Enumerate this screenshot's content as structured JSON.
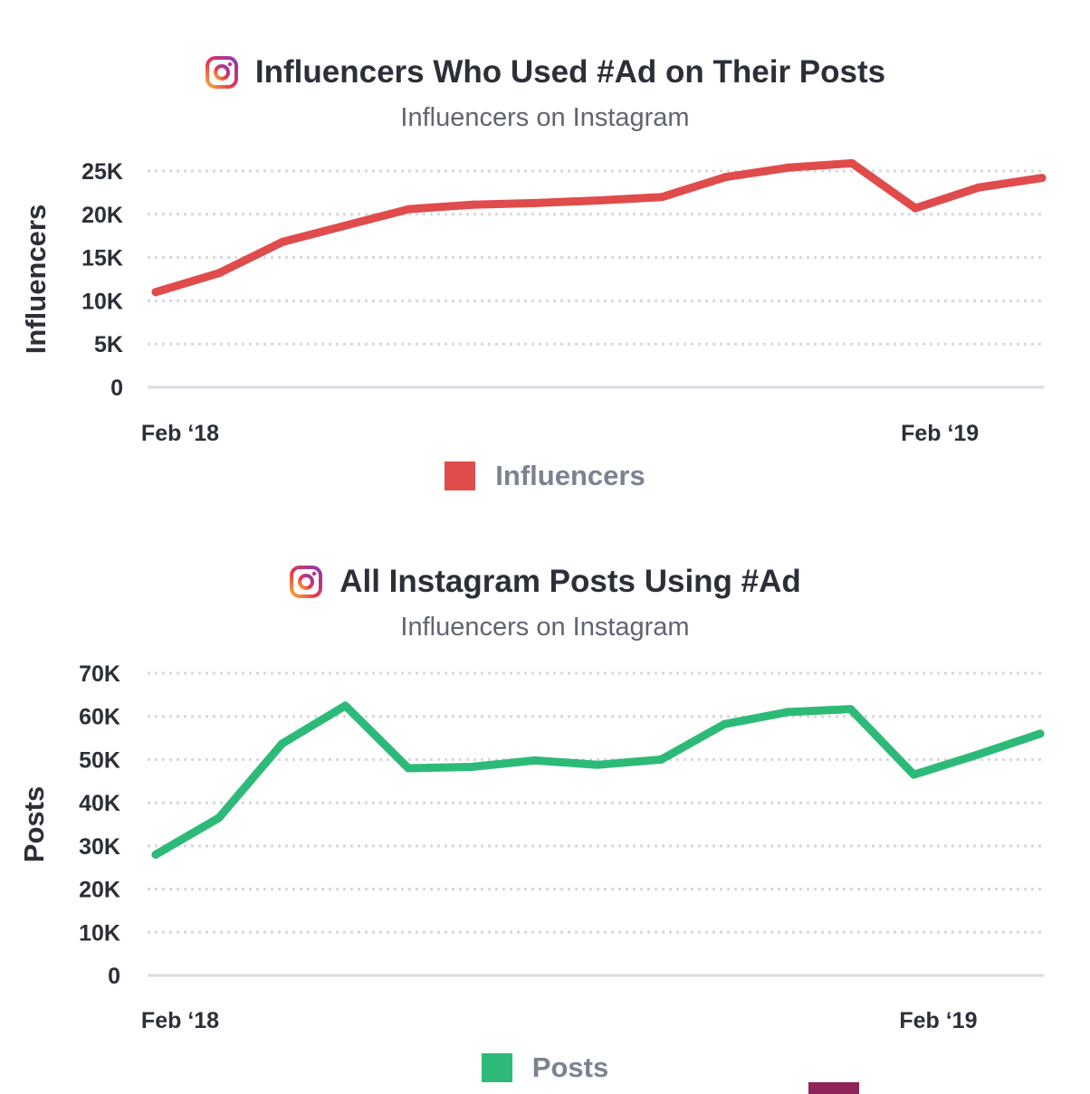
{
  "icons": {
    "title_icon": "instagram-icon"
  },
  "chart_data": [
    {
      "type": "line",
      "title": "Influencers Who Used #Ad on Their Posts",
      "subtitle": "Influencers on Instagram",
      "ylabel": "Influencers",
      "ylim": [
        0,
        25000
      ],
      "yticks": [
        0,
        5000,
        10000,
        15000,
        20000,
        25000
      ],
      "ytick_labels": [
        "0",
        "5K",
        "10K",
        "15K",
        "20K",
        "25K"
      ],
      "xtick_labels": [
        {
          "label": "Feb ‘18",
          "index": 0
        },
        {
          "label": "Feb ‘19",
          "index": 12
        }
      ],
      "grid": true,
      "legend_position": "bottom-center",
      "series": [
        {
          "name": "Influencers",
          "color": "#e04b4b",
          "values": [
            11000,
            13200,
            16800,
            18700,
            20600,
            21100,
            21300,
            21600,
            22000,
            24300,
            25400,
            25900,
            20700,
            23100,
            24200
          ]
        }
      ]
    },
    {
      "type": "line",
      "title": "All Instagram Posts Using #Ad",
      "subtitle": "Influencers on Instagram",
      "ylabel": "Posts",
      "ylim": [
        0,
        70000
      ],
      "yticks": [
        0,
        10000,
        20000,
        30000,
        40000,
        50000,
        60000,
        70000
      ],
      "ytick_labels": [
        "0",
        "10K",
        "20K",
        "30K",
        "40K",
        "50K",
        "60K",
        "70K"
      ],
      "xtick_labels": [
        {
          "label": "Feb ‘18",
          "index": 0
        },
        {
          "label": "Feb ‘19",
          "index": 12
        }
      ],
      "grid": true,
      "legend_position": "bottom-center",
      "series": [
        {
          "name": "Posts",
          "color": "#2dba78",
          "values": [
            28000,
            36500,
            53700,
            62500,
            48000,
            48300,
            49800,
            48800,
            50000,
            58200,
            61000,
            61700,
            46500,
            51100,
            56000
          ]
        }
      ]
    }
  ]
}
